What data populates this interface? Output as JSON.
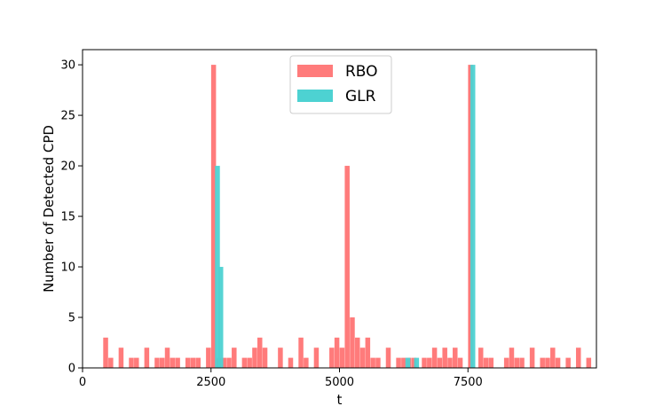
{
  "chart_data": {
    "type": "bar",
    "xlabel": "t",
    "ylabel": "Number of Detected CPD",
    "xlim": [
      0,
      10000
    ],
    "ylim": [
      0,
      31.5
    ],
    "xticks": [
      0,
      2500,
      5000,
      7500
    ],
    "yticks": [
      0,
      5,
      10,
      15,
      20,
      25,
      30
    ],
    "bin_width": 100,
    "grid": false,
    "legend_placement": "top-center",
    "series": [
      {
        "name": "RBO",
        "color": "#FF7B7B",
        "bins": [
          {
            "x": 450,
            "y": 3
          },
          {
            "x": 550,
            "y": 1
          },
          {
            "x": 750,
            "y": 2
          },
          {
            "x": 950,
            "y": 1
          },
          {
            "x": 1050,
            "y": 1
          },
          {
            "x": 1250,
            "y": 2
          },
          {
            "x": 1450,
            "y": 1
          },
          {
            "x": 1550,
            "y": 1
          },
          {
            "x": 1650,
            "y": 2
          },
          {
            "x": 1750,
            "y": 1
          },
          {
            "x": 1850,
            "y": 1
          },
          {
            "x": 2050,
            "y": 1
          },
          {
            "x": 2150,
            "y": 1
          },
          {
            "x": 2250,
            "y": 1
          },
          {
            "x": 2450,
            "y": 2
          },
          {
            "x": 2550,
            "y": 30
          },
          {
            "x": 2650,
            "y": 1
          },
          {
            "x": 2750,
            "y": 1
          },
          {
            "x": 2850,
            "y": 1
          },
          {
            "x": 2950,
            "y": 2
          },
          {
            "x": 3150,
            "y": 1
          },
          {
            "x": 3250,
            "y": 1
          },
          {
            "x": 3350,
            "y": 2
          },
          {
            "x": 3450,
            "y": 3
          },
          {
            "x": 3550,
            "y": 2
          },
          {
            "x": 3850,
            "y": 2
          },
          {
            "x": 4050,
            "y": 1
          },
          {
            "x": 4250,
            "y": 3
          },
          {
            "x": 4350,
            "y": 1
          },
          {
            "x": 4550,
            "y": 2
          },
          {
            "x": 4850,
            "y": 2
          },
          {
            "x": 4950,
            "y": 3
          },
          {
            "x": 5050,
            "y": 2
          },
          {
            "x": 5150,
            "y": 20
          },
          {
            "x": 5250,
            "y": 5
          },
          {
            "x": 5350,
            "y": 3
          },
          {
            "x": 5450,
            "y": 2
          },
          {
            "x": 5550,
            "y": 3
          },
          {
            "x": 5650,
            "y": 1
          },
          {
            "x": 5750,
            "y": 1
          },
          {
            "x": 5950,
            "y": 2
          },
          {
            "x": 6150,
            "y": 1
          },
          {
            "x": 6250,
            "y": 1
          },
          {
            "x": 6350,
            "y": 1
          },
          {
            "x": 6450,
            "y": 1
          },
          {
            "x": 6650,
            "y": 1
          },
          {
            "x": 6750,
            "y": 1
          },
          {
            "x": 6850,
            "y": 2
          },
          {
            "x": 6950,
            "y": 1
          },
          {
            "x": 7050,
            "y": 2
          },
          {
            "x": 7150,
            "y": 1
          },
          {
            "x": 7250,
            "y": 2
          },
          {
            "x": 7350,
            "y": 1
          },
          {
            "x": 7550,
            "y": 30
          },
          {
            "x": 7750,
            "y": 2
          },
          {
            "x": 7850,
            "y": 1
          },
          {
            "x": 7950,
            "y": 1
          },
          {
            "x": 8250,
            "y": 1
          },
          {
            "x": 8350,
            "y": 2
          },
          {
            "x": 8450,
            "y": 1
          },
          {
            "x": 8550,
            "y": 1
          },
          {
            "x": 8750,
            "y": 2
          },
          {
            "x": 8950,
            "y": 1
          },
          {
            "x": 9050,
            "y": 1
          },
          {
            "x": 9150,
            "y": 2
          },
          {
            "x": 9250,
            "y": 1
          },
          {
            "x": 9450,
            "y": 1
          },
          {
            "x": 9650,
            "y": 2
          },
          {
            "x": 9850,
            "y": 1
          }
        ]
      },
      {
        "name": "GLR",
        "color": "#4DD2D2",
        "bins": [
          {
            "x": 2625,
            "y": 20
          },
          {
            "x": 2690,
            "y": 10
          },
          {
            "x": 6330,
            "y": 1
          },
          {
            "x": 6500,
            "y": 1
          },
          {
            "x": 7595,
            "y": 30
          }
        ]
      }
    ]
  }
}
